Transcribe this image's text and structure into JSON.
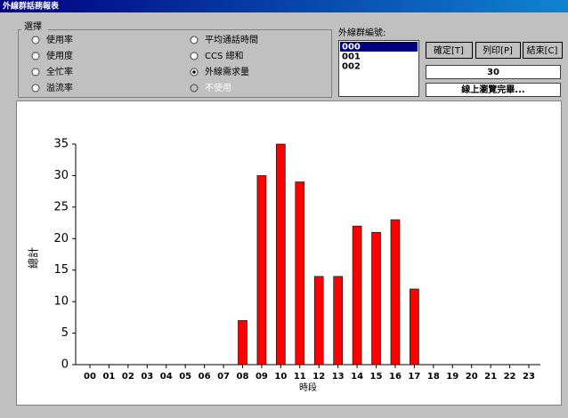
{
  "window": {
    "title": "外線群話務報表"
  },
  "options": {
    "title": "選擇",
    "items": [
      {
        "label": "使用率",
        "checked": false,
        "disabled": false
      },
      {
        "label": "使用度",
        "checked": false,
        "disabled": false
      },
      {
        "label": "全忙率",
        "checked": false,
        "disabled": false
      },
      {
        "label": "溢流率",
        "checked": false,
        "disabled": false
      },
      {
        "label": "平均通話時間",
        "checked": false,
        "disabled": false
      },
      {
        "label": "CCS 總和",
        "checked": false,
        "disabled": false
      },
      {
        "label": "外線需求量",
        "checked": true,
        "disabled": false
      },
      {
        "label": "不使用",
        "checked": false,
        "disabled": true
      }
    ]
  },
  "group_list": {
    "label": "外線群編號:",
    "items": [
      "000",
      "001",
      "002"
    ],
    "selected": 0
  },
  "buttons": [
    "確定[T]",
    "列印[P]",
    "結束[C]"
  ],
  "fields": [
    "30",
    "線上瀏覽完畢..."
  ],
  "chart_data": {
    "type": "bar",
    "x_label": "時段",
    "y_label": "總計",
    "categories": [
      "00",
      "01",
      "02",
      "03",
      "04",
      "05",
      "06",
      "07",
      "08",
      "09",
      "10",
      "11",
      "12",
      "13",
      "14",
      "15",
      "16",
      "17",
      "18",
      "19",
      "20",
      "21",
      "22",
      "23"
    ],
    "values": [
      0,
      0,
      0,
      0,
      0,
      0,
      0,
      0,
      7,
      30,
      35,
      29,
      14,
      14,
      22,
      21,
      23,
      12,
      0,
      0,
      0,
      0,
      0,
      0
    ],
    "color": "#ff0000",
    "ylim": [
      0,
      35
    ],
    "yticks": [
      0,
      5,
      10,
      15,
      20,
      25,
      30,
      35
    ]
  }
}
